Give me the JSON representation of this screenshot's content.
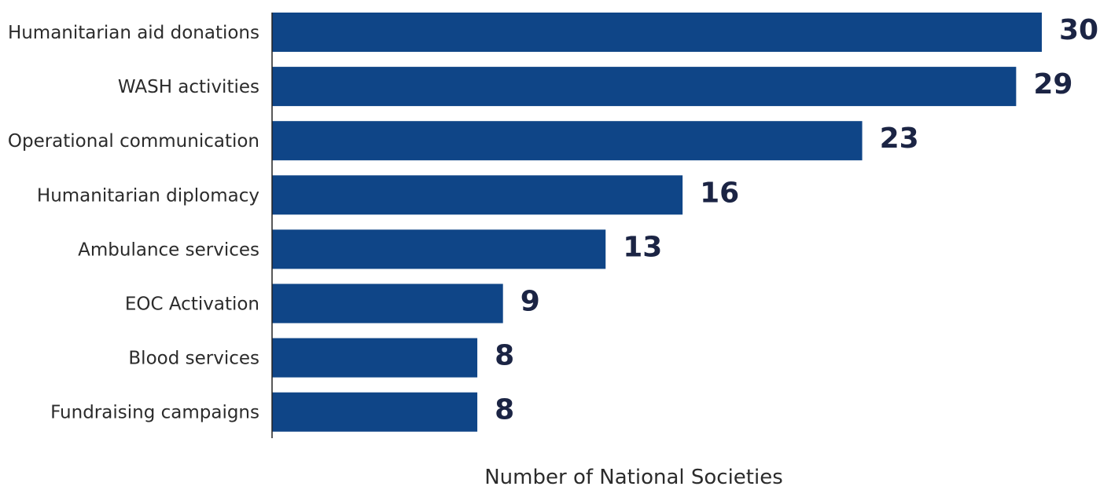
{
  "chart_data": {
    "type": "bar",
    "orientation": "horizontal",
    "categories": [
      "Humanitarian aid donations",
      "WASH activities",
      "Operational communication",
      "Humanitarian diplomacy",
      "Ambulance services",
      "EOC Activation",
      "Blood services",
      "Fundraising campaigns"
    ],
    "values": [
      30,
      29,
      23,
      16,
      13,
      9,
      8,
      8
    ],
    "title": "",
    "xlabel": "Number of National Societies",
    "ylabel": "",
    "xlim": [
      0,
      30
    ],
    "grid": false,
    "legend": "none",
    "bar_color": "#0f4587"
  }
}
